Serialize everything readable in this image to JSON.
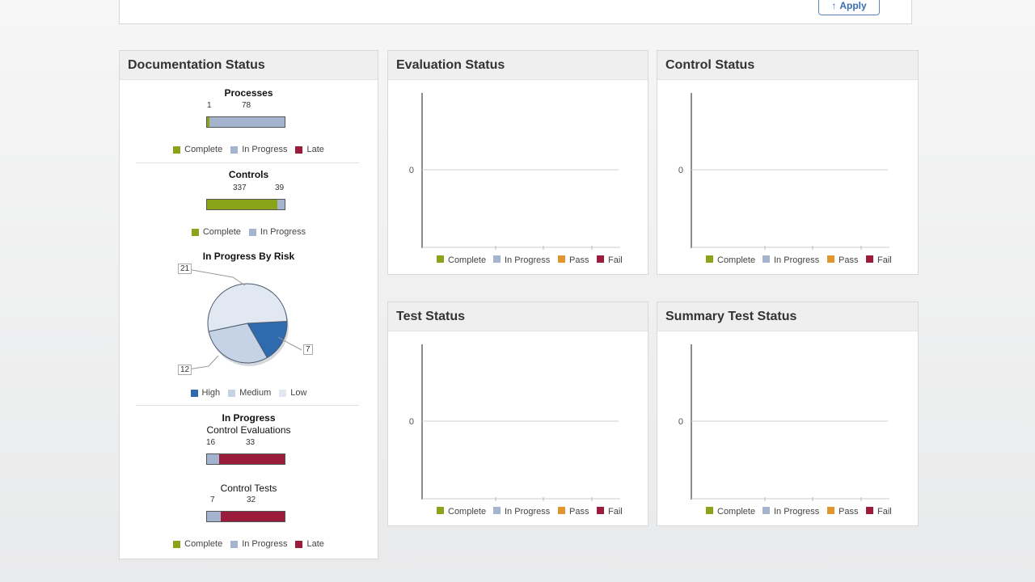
{
  "header": {
    "apply_label": "Apply"
  },
  "colors": {
    "complete": "#8aa319",
    "in_progress": "#a4b4cf",
    "late": "#9b1b3a",
    "pass": "#e0962c",
    "fail": "#9b1b3a",
    "high": "#2f6aaf",
    "medium": "#c6d3e6",
    "low": "#e2e8f2"
  },
  "doc_status": {
    "title": "Documentation Status",
    "processes": {
      "title": "Processes",
      "complete": "1",
      "in_progress": "78",
      "legend": [
        "Complete",
        "In Progress",
        "Late"
      ]
    },
    "controls": {
      "title": "Controls",
      "complete": "337",
      "in_progress": "39",
      "legend": [
        "Complete",
        "In Progress"
      ]
    },
    "risk": {
      "title": "In Progress By Risk",
      "high": "7",
      "medium": "12",
      "low": "21",
      "legend": [
        "High",
        "Medium",
        "Low"
      ]
    },
    "in_progress": {
      "title": "In Progress",
      "evals_title": "Control Evaluations",
      "evals_in_progress": "16",
      "evals_late": "33",
      "tests_title": "Control Tests",
      "tests_in_progress": "7",
      "tests_late": "32",
      "legend": [
        "Complete",
        "In Progress",
        "Late"
      ]
    }
  },
  "chart_data": [
    {
      "type": "bar",
      "title": "Evaluation Status",
      "y_ticks": [
        "0"
      ],
      "legend": [
        "Complete",
        "In Progress",
        "Pass",
        "Fail"
      ],
      "values": []
    },
    {
      "type": "bar",
      "title": "Control Status",
      "y_ticks": [
        "0"
      ],
      "legend": [
        "Complete",
        "In Progress",
        "Pass",
        "Fail"
      ],
      "values": []
    },
    {
      "type": "bar",
      "title": "Test Status",
      "y_ticks": [
        "0"
      ],
      "legend": [
        "Complete",
        "In Progress",
        "Pass",
        "Fail"
      ],
      "values": []
    },
    {
      "type": "bar",
      "title": "Summary Test Status",
      "y_ticks": [
        "0"
      ],
      "legend": [
        "Complete",
        "In Progress",
        "Pass",
        "Fail"
      ],
      "values": []
    }
  ]
}
